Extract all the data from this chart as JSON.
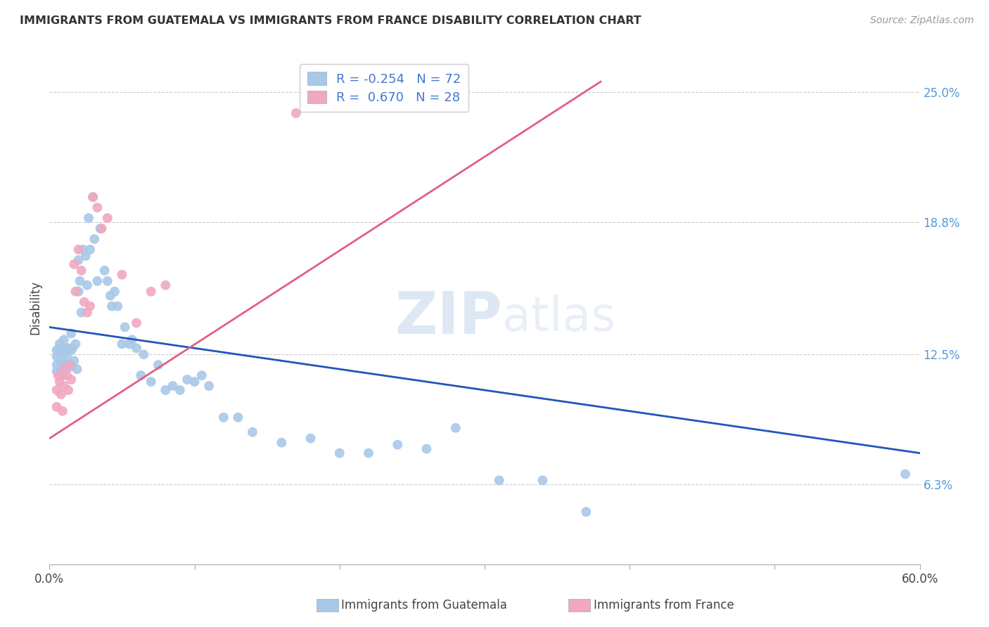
{
  "title": "IMMIGRANTS FROM GUATEMALA VS IMMIGRANTS FROM FRANCE DISABILITY CORRELATION CHART",
  "source": "Source: ZipAtlas.com",
  "ylabel": "Disability",
  "xlim": [
    0.0,
    0.6
  ],
  "ylim": [
    0.025,
    0.27
  ],
  "yticks": [
    0.063,
    0.125,
    0.188,
    0.25
  ],
  "ytick_labels": [
    "6.3%",
    "12.5%",
    "18.8%",
    "25.0%"
  ],
  "xticks": [
    0.0,
    0.1,
    0.2,
    0.3,
    0.4,
    0.5,
    0.6
  ],
  "xtick_labels": [
    "0.0%",
    "",
    "",
    "",
    "",
    "",
    "60.0%"
  ],
  "legend_R_blue": "-0.254",
  "legend_N_blue": "72",
  "legend_R_pink": "0.670",
  "legend_N_pink": "28",
  "blue_color": "#a8c8e8",
  "pink_color": "#f0a8c0",
  "blue_line_color": "#2255bb",
  "pink_line_color": "#e06080",
  "watermark_zip": "ZIP",
  "watermark_atlas": "atlas",
  "background_color": "#ffffff",
  "guatemala_scatter_x": [
    0.005,
    0.005,
    0.005,
    0.005,
    0.007,
    0.007,
    0.008,
    0.008,
    0.009,
    0.009,
    0.01,
    0.01,
    0.01,
    0.012,
    0.013,
    0.014,
    0.015,
    0.015,
    0.015,
    0.016,
    0.017,
    0.018,
    0.019,
    0.02,
    0.02,
    0.021,
    0.022,
    0.023,
    0.025,
    0.026,
    0.027,
    0.028,
    0.03,
    0.031,
    0.033,
    0.035,
    0.038,
    0.04,
    0.042,
    0.043,
    0.045,
    0.047,
    0.05,
    0.052,
    0.055,
    0.057,
    0.06,
    0.063,
    0.065,
    0.07,
    0.075,
    0.08,
    0.085,
    0.09,
    0.095,
    0.1,
    0.105,
    0.11,
    0.12,
    0.13,
    0.14,
    0.16,
    0.18,
    0.2,
    0.22,
    0.24,
    0.26,
    0.28,
    0.31,
    0.34,
    0.37,
    0.59
  ],
  "guatemala_scatter_y": [
    0.127,
    0.124,
    0.12,
    0.117,
    0.13,
    0.126,
    0.122,
    0.118,
    0.128,
    0.115,
    0.132,
    0.126,
    0.12,
    0.124,
    0.128,
    0.119,
    0.135,
    0.127,
    0.12,
    0.128,
    0.122,
    0.13,
    0.118,
    0.17,
    0.155,
    0.16,
    0.145,
    0.175,
    0.172,
    0.158,
    0.19,
    0.175,
    0.2,
    0.18,
    0.16,
    0.185,
    0.165,
    0.16,
    0.153,
    0.148,
    0.155,
    0.148,
    0.13,
    0.138,
    0.13,
    0.132,
    0.128,
    0.115,
    0.125,
    0.112,
    0.12,
    0.108,
    0.11,
    0.108,
    0.113,
    0.112,
    0.115,
    0.11,
    0.095,
    0.095,
    0.088,
    0.083,
    0.085,
    0.078,
    0.078,
    0.082,
    0.08,
    0.09,
    0.065,
    0.065,
    0.05,
    0.068
  ],
  "france_scatter_x": [
    0.005,
    0.005,
    0.006,
    0.007,
    0.008,
    0.009,
    0.01,
    0.01,
    0.012,
    0.013,
    0.014,
    0.015,
    0.017,
    0.018,
    0.02,
    0.022,
    0.024,
    0.026,
    0.028,
    0.03,
    0.033,
    0.036,
    0.04,
    0.05,
    0.06,
    0.07,
    0.08,
    0.17
  ],
  "france_scatter_y": [
    0.108,
    0.1,
    0.115,
    0.112,
    0.106,
    0.098,
    0.118,
    0.11,
    0.115,
    0.108,
    0.12,
    0.113,
    0.168,
    0.155,
    0.175,
    0.165,
    0.15,
    0.145,
    0.148,
    0.2,
    0.195,
    0.185,
    0.19,
    0.163,
    0.14,
    0.155,
    0.158,
    0.24
  ],
  "blue_line_x": [
    0.0,
    0.6
  ],
  "blue_line_y": [
    0.138,
    0.078
  ],
  "pink_line_x": [
    0.0,
    0.38
  ],
  "pink_line_y": [
    0.085,
    0.255
  ]
}
